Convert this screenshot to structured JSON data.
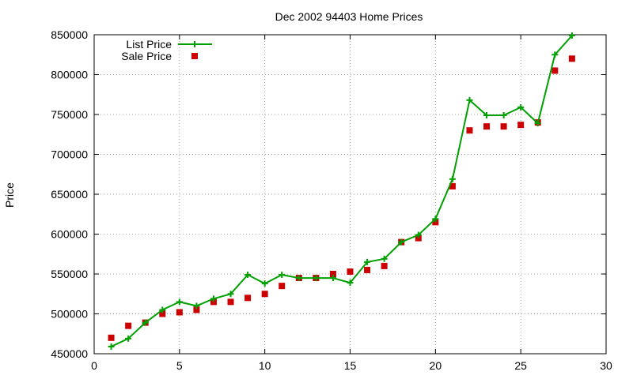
{
  "chart_data": {
    "type": "line",
    "title": "Dec 2002 94403 Home Prices",
    "xlabel": "",
    "ylabel": "Price",
    "xlim": [
      0,
      30
    ],
    "ylim": [
      450000,
      850000
    ],
    "xticks": [
      0,
      5,
      10,
      15,
      20,
      25,
      30
    ],
    "yticks": [
      450000,
      500000,
      550000,
      600000,
      650000,
      700000,
      750000,
      800000,
      850000
    ],
    "grid": true,
    "legend_position": "top-left",
    "x": [
      1,
      2,
      3,
      4,
      5,
      6,
      7,
      8,
      9,
      10,
      11,
      12,
      13,
      14,
      15,
      16,
      17,
      18,
      19,
      20,
      21,
      22,
      23,
      24,
      25,
      26,
      27,
      28
    ],
    "series": [
      {
        "name": "List Price",
        "style": "line-with-plus-markers",
        "color": "#00a000",
        "values": [
          459000,
          469000,
          489000,
          505000,
          515000,
          510000,
          519000,
          525000,
          549000,
          538000,
          549000,
          545000,
          545000,
          545000,
          539000,
          565000,
          569000,
          590000,
          599000,
          619000,
          669000,
          768000,
          749000,
          749000,
          759000,
          739000,
          825000,
          849000
        ]
      },
      {
        "name": "Sale Price",
        "style": "square-markers",
        "color": "#cc0000",
        "values": [
          470000,
          485000,
          489000,
          500000,
          502000,
          505000,
          515000,
          515000,
          520000,
          525000,
          535000,
          545000,
          545000,
          550000,
          553000,
          555000,
          560000,
          590000,
          595000,
          615000,
          660000,
          730000,
          735000,
          735000,
          737000,
          740000,
          805000,
          820000
        ]
      }
    ]
  }
}
